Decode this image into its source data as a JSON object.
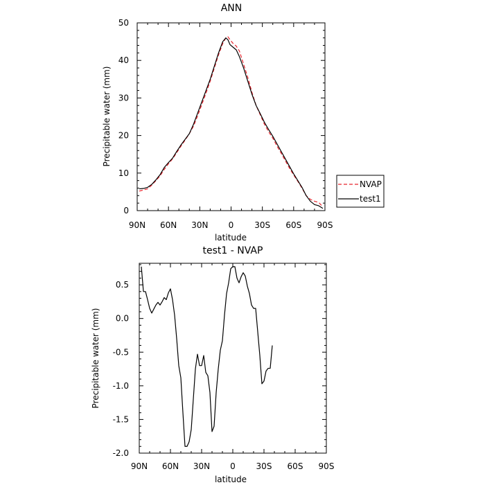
{
  "chart_data": [
    {
      "type": "line",
      "title": "ANN",
      "xlabel": "latitude",
      "ylabel": "Precipitable water (mm)",
      "xlim": [
        90,
        -90
      ],
      "ylim": [
        0,
        50
      ],
      "xticks": [
        {
          "v": 90,
          "label": "90N"
        },
        {
          "v": 60,
          "label": "60N"
        },
        {
          "v": 30,
          "label": "30N"
        },
        {
          "v": 0,
          "label": "0"
        },
        {
          "v": -30,
          "label": "30S"
        },
        {
          "v": -60,
          "label": "60S"
        },
        {
          "v": -90,
          "label": "90S"
        }
      ],
      "yticks": [
        0,
        10,
        20,
        30,
        40,
        50
      ],
      "legend_position": "right",
      "series": [
        {
          "name": "NVAP",
          "color": "#e8232b",
          "dash": "dashed",
          "points": [
            [
              88,
              5.2
            ],
            [
              84,
              5.5
            ],
            [
              80,
              5.8
            ],
            [
              76,
              6.8
            ],
            [
              72,
              8.0
            ],
            [
              68,
              9.3
            ],
            [
              64,
              11.0
            ],
            [
              60,
              12.5
            ],
            [
              56,
              13.8
            ],
            [
              52,
              15.5
            ],
            [
              48,
              17.2
            ],
            [
              44,
              18.8
            ],
            [
              40,
              20.5
            ],
            [
              36,
              22.5
            ],
            [
              32,
              25.3
            ],
            [
              28,
              28.3
            ],
            [
              24,
              31.3
            ],
            [
              20,
              34.5
            ],
            [
              16,
              38.0
            ],
            [
              12,
              41.5
            ],
            [
              8,
              44.5
            ],
            [
              5,
              46.0
            ],
            [
              3,
              46.3
            ],
            [
              1,
              45.5
            ],
            [
              -2,
              44.5
            ],
            [
              -5,
              43.8
            ],
            [
              -8,
              42.5
            ],
            [
              -12,
              39.0
            ],
            [
              -16,
              35.5
            ],
            [
              -20,
              31.5
            ],
            [
              -24,
              28.0
            ],
            [
              -28,
              25.5
            ],
            [
              -32,
              23.0
            ],
            [
              -36,
              21.0
            ],
            [
              -40,
              19.3
            ],
            [
              -44,
              17.2
            ],
            [
              -48,
              15.3
            ],
            [
              -52,
              13.3
            ],
            [
              -56,
              11.3
            ],
            [
              -60,
              9.5
            ],
            [
              -64,
              7.8
            ],
            [
              -68,
              6.0
            ],
            [
              -72,
              4.0
            ],
            [
              -76,
              3.0
            ],
            [
              -80,
              2.5
            ],
            [
              -84,
              2.2
            ],
            [
              -88,
              1.0
            ]
          ]
        },
        {
          "name": "test1",
          "color": "#000000",
          "dash": "solid",
          "points": [
            [
              88,
              5.8
            ],
            [
              84,
              5.9
            ],
            [
              80,
              6.2
            ],
            [
              76,
              7.0
            ],
            [
              72,
              8.2
            ],
            [
              68,
              9.6
            ],
            [
              64,
              11.5
            ],
            [
              60,
              12.8
            ],
            [
              56,
              14.0
            ],
            [
              52,
              15.8
            ],
            [
              48,
              17.5
            ],
            [
              44,
              19.0
            ],
            [
              40,
              20.5
            ],
            [
              36,
              23.0
            ],
            [
              32,
              26.0
            ],
            [
              28,
              29.0
            ],
            [
              24,
              32.0
            ],
            [
              20,
              35.0
            ],
            [
              16,
              38.5
            ],
            [
              12,
              42.0
            ],
            [
              8,
              45.0
            ],
            [
              5,
              46.0
            ],
            [
              3,
              45.5
            ],
            [
              1,
              44.2
            ],
            [
              -2,
              43.5
            ],
            [
              -5,
              42.8
            ],
            [
              -8,
              41.0
            ],
            [
              -12,
              38.0
            ],
            [
              -16,
              34.5
            ],
            [
              -20,
              31.0
            ],
            [
              -24,
              28.0
            ],
            [
              -28,
              25.8
            ],
            [
              -32,
              23.5
            ],
            [
              -36,
              21.6
            ],
            [
              -40,
              19.8
            ],
            [
              -44,
              17.8
            ],
            [
              -48,
              15.8
            ],
            [
              -52,
              13.8
            ],
            [
              -56,
              11.8
            ],
            [
              -60,
              9.8
            ],
            [
              -64,
              8.0
            ],
            [
              -68,
              6.2
            ],
            [
              -72,
              4.0
            ],
            [
              -76,
              2.5
            ],
            [
              -80,
              1.6
            ],
            [
              -84,
              1.3
            ],
            [
              -88,
              0.6
            ]
          ]
        }
      ]
    },
    {
      "type": "line",
      "title": "test1 - NVAP",
      "xlabel": "latitude",
      "ylabel": "Precipitable water (mm)",
      "xlim": [
        90,
        -90
      ],
      "ylim": [
        -2.0,
        0.82
      ],
      "xticks": [
        {
          "v": 90,
          "label": "90N"
        },
        {
          "v": 60,
          "label": "60N"
        },
        {
          "v": 30,
          "label": "30N"
        },
        {
          "v": 0,
          "label": "0"
        },
        {
          "v": -30,
          "label": "30S"
        },
        {
          "v": -60,
          "label": "60S"
        },
        {
          "v": -90,
          "label": "90S"
        }
      ],
      "yticks": [
        {
          "v": 0.5,
          "label": "0.5"
        },
        {
          "v": 0.0,
          "label": "0.0"
        },
        {
          "v": -0.5,
          "label": "-0.5"
        },
        {
          "v": -1.0,
          "label": "-1.0"
        },
        {
          "v": -1.5,
          "label": "-1.5"
        },
        {
          "v": -2.0,
          "label": "-2.0"
        }
      ],
      "series": [
        {
          "color": "#000000",
          "dash": "solid",
          "points": [
            [
              88,
              0.77
            ],
            [
              86,
              0.4
            ],
            [
              84,
              0.4
            ],
            [
              82,
              0.28
            ],
            [
              80,
              0.15
            ],
            [
              78,
              0.08
            ],
            [
              76,
              0.14
            ],
            [
              74,
              0.2
            ],
            [
              72,
              0.24
            ],
            [
              70,
              0.2
            ],
            [
              68,
              0.25
            ],
            [
              66,
              0.31
            ],
            [
              64,
              0.28
            ],
            [
              62,
              0.38
            ],
            [
              60,
              0.44
            ],
            [
              58,
              0.28
            ],
            [
              56,
              0.05
            ],
            [
              54,
              -0.3
            ],
            [
              52,
              -0.7
            ],
            [
              50,
              -0.88
            ],
            [
              48,
              -1.4
            ],
            [
              46,
              -1.9
            ],
            [
              44,
              -1.9
            ],
            [
              42,
              -1.83
            ],
            [
              40,
              -1.65
            ],
            [
              38,
              -1.2
            ],
            [
              36,
              -0.75
            ],
            [
              34,
              -0.53
            ],
            [
              32,
              -0.7
            ],
            [
              30,
              -0.7
            ],
            [
              28,
              -0.55
            ],
            [
              26,
              -0.8
            ],
            [
              24,
              -0.85
            ],
            [
              22,
              -1.1
            ],
            [
              20,
              -1.68
            ],
            [
              18,
              -1.6
            ],
            [
              16,
              -1.1
            ],
            [
              14,
              -0.75
            ],
            [
              12,
              -0.47
            ],
            [
              10,
              -0.33
            ],
            [
              8,
              0.05
            ],
            [
              6,
              0.37
            ],
            [
              4,
              0.53
            ],
            [
              2,
              0.74
            ],
            [
              0,
              0.77
            ],
            [
              -2,
              0.77
            ],
            [
              -4,
              0.6
            ],
            [
              -6,
              0.53
            ],
            [
              -8,
              0.62
            ],
            [
              -10,
              0.68
            ],
            [
              -12,
              0.63
            ],
            [
              -14,
              0.48
            ],
            [
              -16,
              0.37
            ],
            [
              -18,
              0.2
            ],
            [
              -20,
              0.15
            ],
            [
              -22,
              0.15
            ],
            [
              -24,
              -0.2
            ],
            [
              -26,
              -0.55
            ],
            [
              -28,
              -0.97
            ],
            [
              -30,
              -0.93
            ],
            [
              -32,
              -0.78
            ],
            [
              -34,
              -0.74
            ],
            [
              -36,
              -0.74
            ],
            [
              -38,
              -0.4
            ]
          ]
        }
      ]
    }
  ],
  "legend": {
    "entries": [
      {
        "label": "NVAP",
        "color": "#e8232b",
        "dash": "dashed"
      },
      {
        "label": "test1",
        "color": "#000000",
        "dash": "solid"
      }
    ]
  }
}
